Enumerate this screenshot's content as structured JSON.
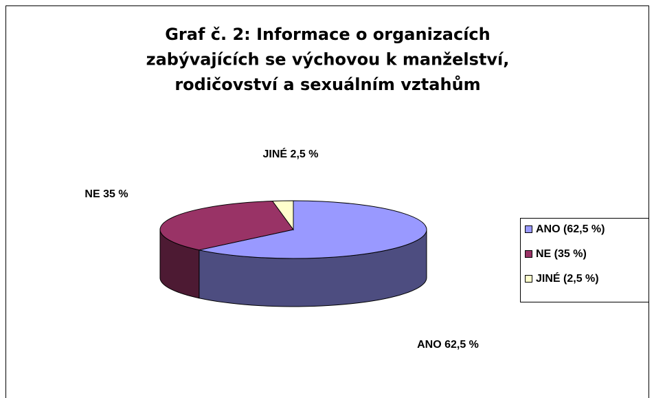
{
  "chart_data": {
    "type": "pie",
    "title": [
      "Graf č. 2: Informace o organizacích",
      "zabývajících se výchovou k manželství,",
      "rodičovství a sexuálním vztahům"
    ],
    "categories": [
      "ANO",
      "NE",
      "JINÉ"
    ],
    "values": [
      62.5,
      35,
      2.5
    ],
    "value_labels": [
      "ANO 62,5 %",
      "NE 35 %",
      "JINÉ 2,5 %"
    ],
    "legend_labels": [
      "ANO (62,5 %)",
      "NE (35 %)",
      "JINÉ (2,5 %)"
    ],
    "colors": [
      "#9999ff",
      "#993366",
      "#ffffcc"
    ],
    "legend": "right"
  }
}
